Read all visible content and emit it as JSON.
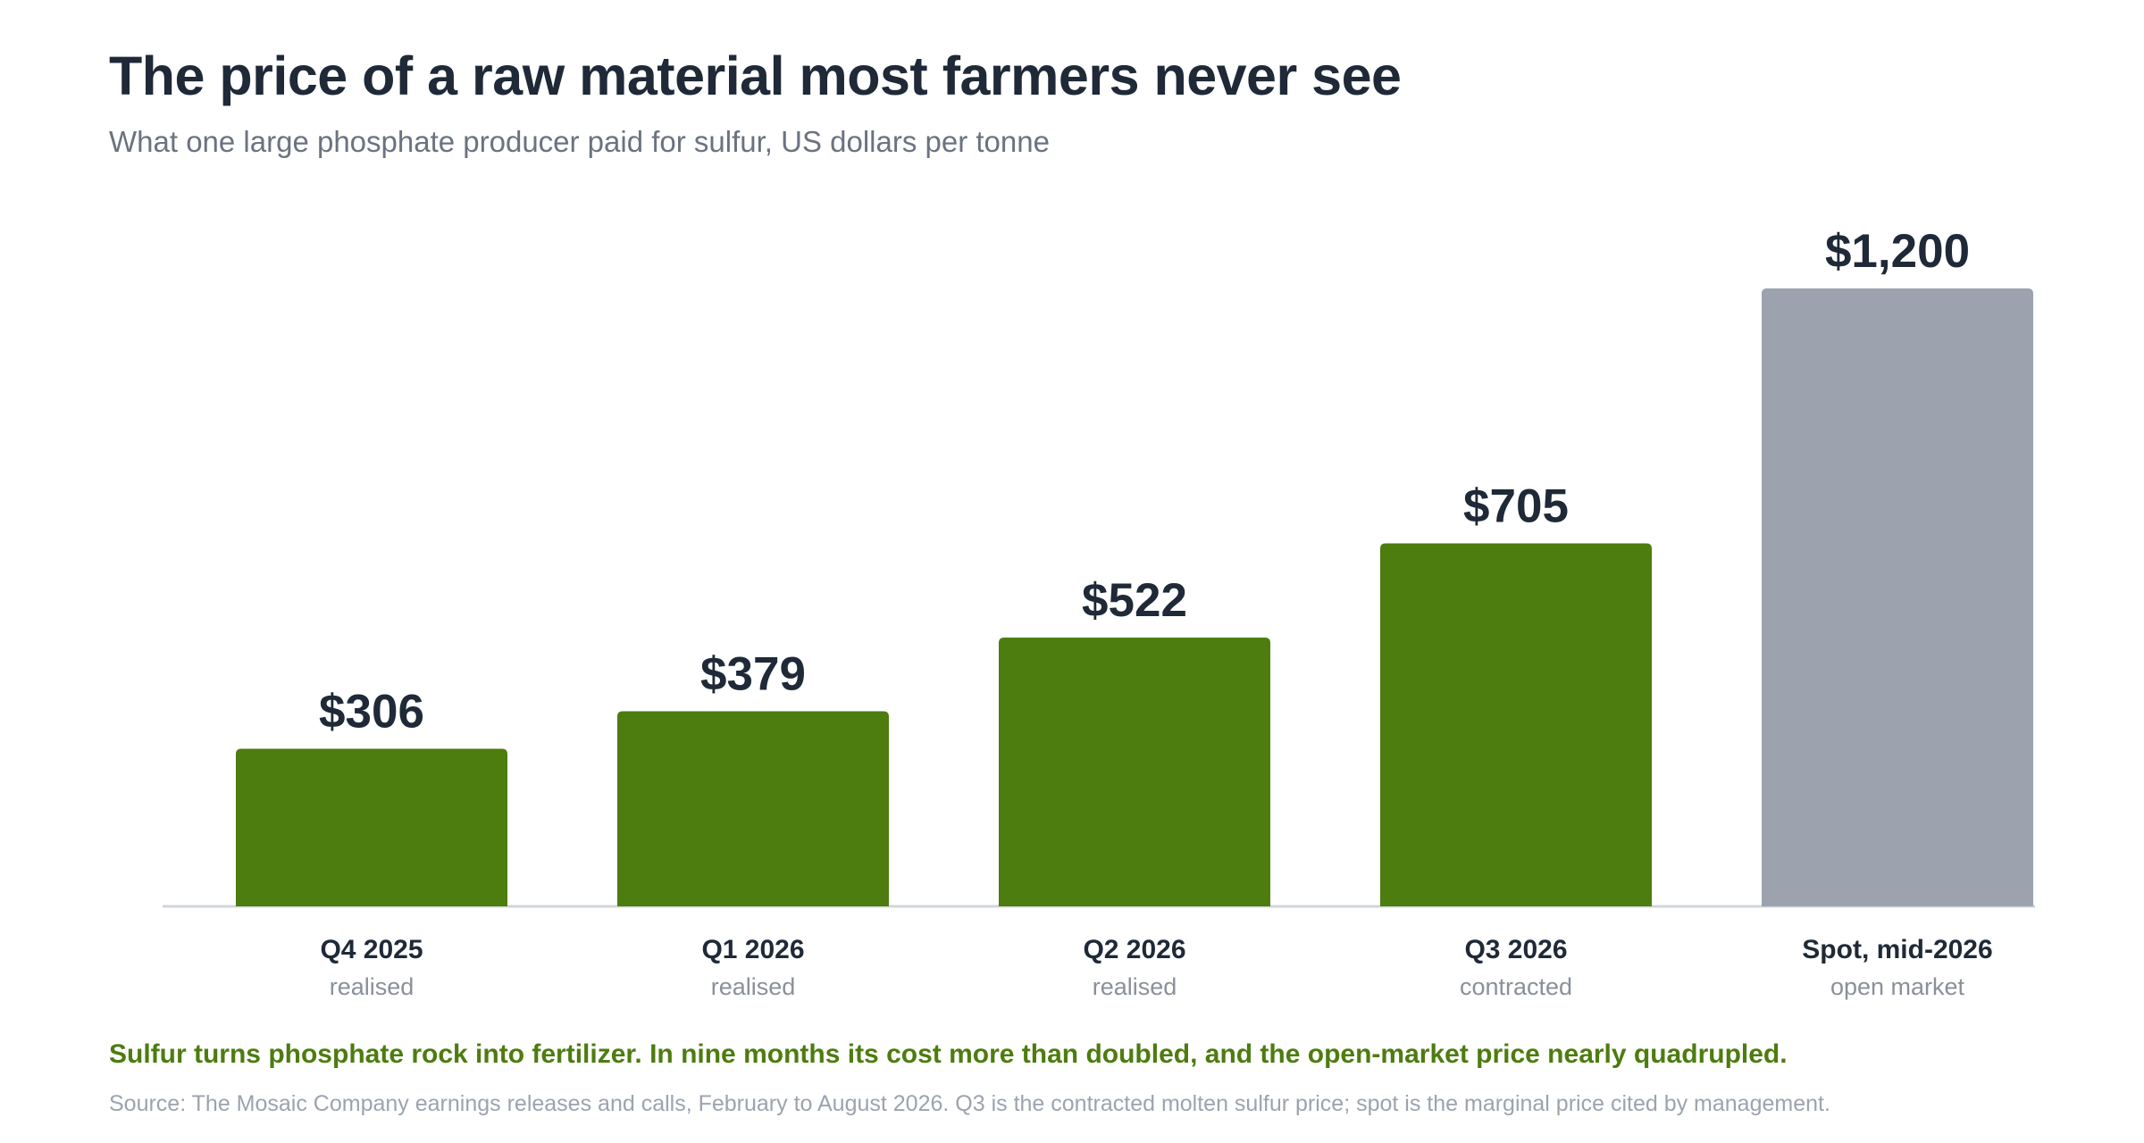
{
  "header": {
    "title": "The price of a raw material most farmers never see",
    "subtitle": "What one large phosphate producer paid for sulfur, US dollars per tonne"
  },
  "chart_data": {
    "type": "bar",
    "categories": [
      "Q4 2025",
      "Q1 2026",
      "Q2 2026",
      "Q3 2026",
      "Spot, mid-2026"
    ],
    "category_notes": [
      "realised",
      "realised",
      "realised",
      "contracted",
      "open market"
    ],
    "values": [
      306,
      379,
      522,
      705,
      1200
    ],
    "value_labels": [
      "$306",
      "$379",
      "$522",
      "$705",
      "$1,200"
    ],
    "bar_colors": [
      "#4d7c0f",
      "#4d7c0f",
      "#4d7c0f",
      "#4d7c0f",
      "#9ca3af"
    ],
    "title": "The price of a raw material most farmers never see",
    "subtitle": "What one large phosphate producer paid for sulfur, US dollars per tonne",
    "ylim": [
      0,
      1200
    ],
    "grid": false
  },
  "footer": {
    "takeaway": "Sulfur turns phosphate rock into fertilizer. In nine months its cost more than doubled, and the open-market price nearly quadrupled.",
    "source": "Source: The Mosaic Company earnings releases and calls, February to August 2026. Q3 is the contracted molten sulfur price; spot is the marginal price cited by management."
  },
  "colors": {
    "accent_green": "#4d7c0f",
    "spot_gray": "#9ca3af",
    "title_text": "#1f2937",
    "muted_text": "#6b7280",
    "axis_line": "#d1d5db"
  }
}
